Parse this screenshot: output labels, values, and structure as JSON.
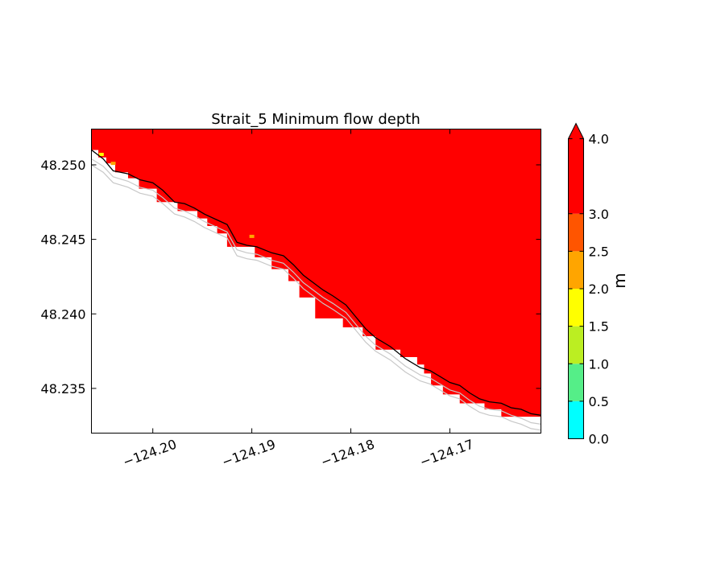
{
  "chart_data": {
    "type": "heatmap",
    "title": "Strait_5 Minimum flow depth",
    "xlabel": "",
    "ylabel": "",
    "xlim": [
      -124.2062,
      -124.1608
    ],
    "ylim": [
      48.232,
      48.2524
    ],
    "x_ticks": [
      -124.2,
      -124.19,
      -124.18,
      -124.17
    ],
    "x_tick_labels": [
      "−124.20",
      "−124.19",
      "−124.18",
      "−124.17"
    ],
    "y_ticks": [
      48.235,
      48.24,
      48.245,
      48.25
    ],
    "y_tick_labels": [
      "48.235",
      "48.240",
      "48.245",
      "48.250"
    ],
    "grid": false,
    "colorbar": {
      "label": "m",
      "extend": "max",
      "levels": [
        0.0,
        0.5,
        1.0,
        1.5,
        2.0,
        2.5,
        3.0,
        4.0
      ],
      "tick_labels": [
        "0.0",
        "0.5",
        "1.0",
        "1.5",
        "2.0",
        "2.5",
        "3.0",
        "4.0"
      ],
      "colors": [
        "#00ffff",
        "#55ee88",
        "#bbee22",
        "#ffff00",
        "#ffa500",
        "#ff5500",
        "#ff0000"
      ],
      "extend_color": "#ff0000"
    },
    "filled_region": {
      "value_range": [
        3.0,
        4.0
      ],
      "color": "#ff0000",
      "description_values": "flow depth >= 3.0 m over the domain north-east of the shoreline",
      "shoreline_cells_x": [
        -124.2062,
        -124.2055,
        -124.2047,
        -124.2038,
        -124.2025,
        -124.2014,
        -124.1996,
        -124.1975,
        -124.1955,
        -124.1945,
        -124.1935,
        -124.1925,
        -124.1897,
        -124.188,
        -124.1863,
        -124.1852,
        -124.1836,
        -124.1808,
        -124.1788,
        -124.1775,
        -124.175,
        -124.1733,
        -124.1726,
        -124.1719,
        -124.1707,
        -124.169,
        -124.1665,
        -124.1648,
        -124.162,
        -124.161,
        -124.1608
      ],
      "shoreline_cells_y": [
        48.2514,
        48.251,
        48.2505,
        48.2501,
        48.2495,
        48.2491,
        48.2484,
        48.2475,
        48.2469,
        48.2464,
        48.2459,
        48.2454,
        48.2445,
        48.2438,
        48.243,
        48.2422,
        48.2411,
        48.2397,
        48.2391,
        48.2385,
        48.2376,
        48.2371,
        48.2366,
        48.236,
        48.2352,
        48.2346,
        48.234,
        48.2336,
        48.2331,
        48.2331,
        48.2331
      ],
      "low_depth_patches": [
        {
          "x": -124.2052,
          "y": 48.2507,
          "value": 1.8,
          "color": "#ffff00"
        },
        {
          "x": -124.204,
          "y": 48.2501,
          "value": 2.2,
          "color": "#ffa500"
        },
        {
          "x": -124.19,
          "y": 48.2452,
          "value": 2.2,
          "color": "#ffa500"
        }
      ]
    },
    "contours": [
      {
        "name": "shoreline",
        "color": "#000000",
        "x": [
          -124.2062,
          -124.205,
          -124.204,
          -124.2025,
          -124.2013,
          -124.2,
          -124.199,
          -124.1978,
          -124.1968,
          -124.1958,
          -124.1948,
          -124.1935,
          -124.1925,
          -124.1915,
          -124.1905,
          -124.1895,
          -124.188,
          -124.1868,
          -124.1858,
          -124.1848,
          -124.1838,
          -124.1828,
          -124.1818,
          -124.1805,
          -124.1795,
          -124.1785,
          -124.1775,
          -124.176,
          -124.1745,
          -124.173,
          -124.172,
          -124.171,
          -124.17,
          -124.169,
          -124.168,
          -124.167,
          -124.166,
          -124.1648,
          -124.1638,
          -124.1628,
          -124.1618,
          -124.1608
        ],
        "y": [
          48.251,
          48.2504,
          48.2496,
          48.2494,
          48.249,
          48.2488,
          48.2483,
          48.2475,
          48.2474,
          48.2471,
          48.2467,
          48.2463,
          48.246,
          48.2448,
          48.2446,
          48.2445,
          48.2441,
          48.2439,
          48.2433,
          48.2426,
          48.2421,
          48.2416,
          48.2412,
          48.2406,
          48.2398,
          48.239,
          48.2384,
          48.2378,
          48.237,
          48.2364,
          48.2362,
          48.2358,
          48.2354,
          48.2352,
          48.2347,
          48.2343,
          48.2341,
          48.234,
          48.2337,
          48.2336,
          48.2333,
          48.2332
        ]
      },
      {
        "name": "contour-upper",
        "color": "#c8c8c8",
        "x": [
          -124.2062,
          -124.205,
          -124.204,
          -124.2025,
          -124.2013,
          -124.2,
          -124.199,
          -124.1978,
          -124.1968,
          -124.1958,
          -124.1948,
          -124.1935,
          -124.1925,
          -124.1915,
          -124.1905,
          -124.1895,
          -124.188,
          -124.1868,
          -124.1858,
          -124.1848,
          -124.1838,
          -124.1828,
          -124.1818,
          -124.1805,
          -124.1795,
          -124.1785,
          -124.1775,
          -124.176,
          -124.1745,
          -124.173,
          -124.172,
          -124.171,
          -124.17,
          -124.169,
          -124.168,
          -124.167,
          -124.166,
          -124.1648,
          -124.1638,
          -124.1628,
          -124.1618,
          -124.1608
        ],
        "y": [
          48.2504,
          48.2499,
          48.2492,
          48.2489,
          48.2485,
          48.2483,
          48.2478,
          48.2471,
          48.2469,
          48.2466,
          48.2462,
          48.2458,
          48.2455,
          48.2443,
          48.2441,
          48.244,
          48.2436,
          48.2434,
          48.2428,
          48.2421,
          48.2416,
          48.2411,
          48.2407,
          48.2401,
          48.2393,
          48.2385,
          48.2379,
          48.2373,
          48.2365,
          48.2359,
          48.2357,
          48.2353,
          48.2349,
          48.2347,
          48.2342,
          48.2338,
          48.2336,
          48.2335,
          48.2332,
          48.233,
          48.2327,
          48.2326
        ]
      },
      {
        "name": "contour-lower",
        "color": "#c8c8c8",
        "x": [
          -124.2062,
          -124.205,
          -124.204,
          -124.2025,
          -124.2013,
          -124.2,
          -124.199,
          -124.1978,
          -124.1968,
          -124.1958,
          -124.1948,
          -124.1935,
          -124.1925,
          -124.1915,
          -124.1905,
          -124.1895,
          -124.188,
          -124.1868,
          -124.1858,
          -124.1848,
          -124.1838,
          -124.1828,
          -124.1818,
          -124.1805,
          -124.1795,
          -124.1785,
          -124.1775,
          -124.176,
          -124.1745,
          -124.173,
          -124.172,
          -124.171,
          -124.17,
          -124.169,
          -124.168,
          -124.167,
          -124.166,
          -124.1648,
          -124.1638,
          -124.1628,
          -124.1618,
          -124.1608
        ],
        "y": [
          48.25,
          48.2495,
          48.2488,
          48.2485,
          48.2481,
          48.2479,
          48.2474,
          48.2467,
          48.2465,
          48.2462,
          48.2458,
          48.2454,
          48.2451,
          48.2439,
          48.2437,
          48.2436,
          48.2432,
          48.243,
          48.2424,
          48.2417,
          48.2412,
          48.2407,
          48.2403,
          48.2397,
          48.2389,
          48.2381,
          48.2375,
          48.2369,
          48.2361,
          48.2355,
          48.2353,
          48.2349,
          48.2345,
          48.2343,
          48.2338,
          48.2334,
          48.2332,
          48.2331,
          48.2328,
          48.2326,
          48.2323,
          48.2322
        ]
      }
    ]
  }
}
